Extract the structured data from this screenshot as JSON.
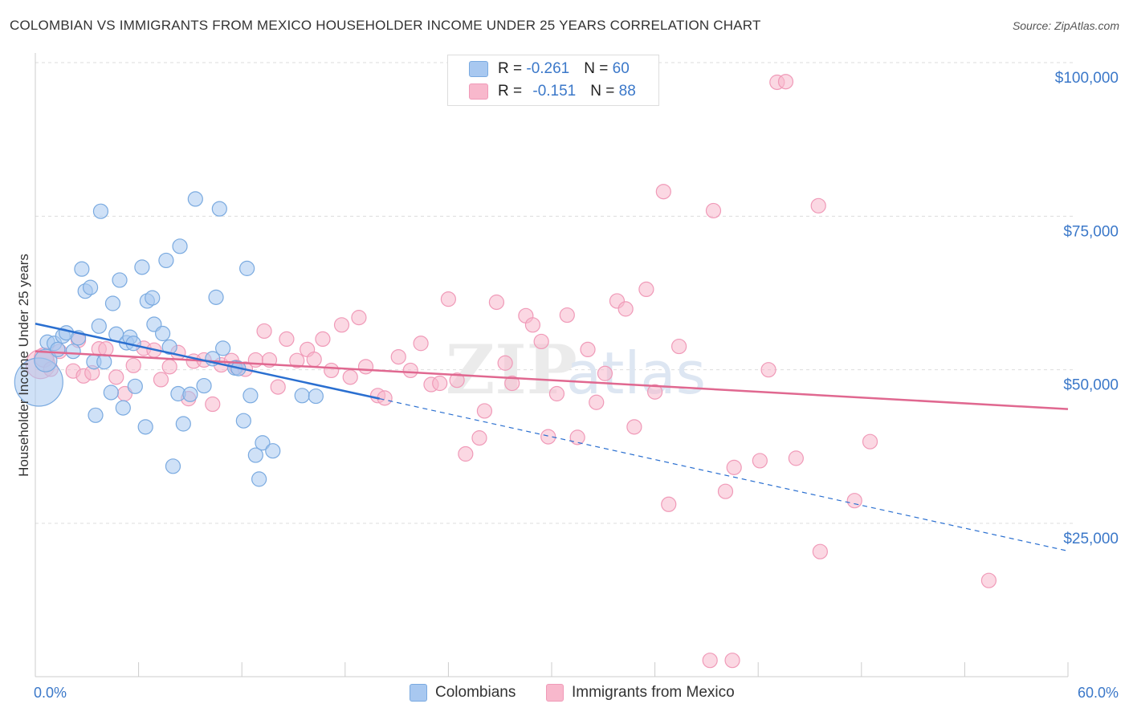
{
  "title": "COLOMBIAN VS IMMIGRANTS FROM MEXICO HOUSEHOLDER INCOME UNDER 25 YEARS CORRELATION CHART",
  "source": "Source: ZipAtlas.com",
  "watermark": {
    "zip": "ZIP",
    "atlas": "atlas"
  },
  "legend_stats": [
    {
      "r_label": "R = ",
      "r": "-0.261",
      "n_label": "N = ",
      "n": "60",
      "color": "#a8c8f0"
    },
    {
      "r_label": "R = ",
      "r": "-0.151",
      "n_label": "N = ",
      "n": "88",
      "color": "#f8b8cc"
    }
  ],
  "chart_data": {
    "type": "scatter",
    "title": "COLOMBIAN VS IMMIGRANTS FROM MEXICO HOUSEHOLDER INCOME UNDER 25 YEARS CORRELATION CHART",
    "xlabel": "",
    "ylabel": "Householder Income Under 25 years",
    "xlim": [
      0,
      60
    ],
    "ylim": [
      0,
      103000
    ],
    "x_tick_labels": [
      "0.0%",
      "60.0%"
    ],
    "y_ticks": [
      25000,
      50000,
      75000,
      100000
    ],
    "y_tick_labels": [
      "$25,000",
      "$50,000",
      "$75,000",
      "$100,000"
    ],
    "grid": true,
    "legend_position": "bottom",
    "series": [
      {
        "name": "Colombians",
        "color": "#7aaae0",
        "fill": "#a8c8f0",
        "trend": {
          "x": [
            0,
            20
          ],
          "y": [
            57500,
            45300
          ],
          "dashed_extension_to_x": 60,
          "dashed_end_y": 20500,
          "color": "#2a6fd0"
        },
        "points": [
          [
            0.2,
            48000,
            30
          ],
          [
            0.6,
            51500,
            14
          ],
          [
            0.7,
            54500,
            9
          ],
          [
            1.1,
            54300,
            9
          ],
          [
            1.3,
            53300,
            9
          ],
          [
            1.6,
            55500,
            9
          ],
          [
            1.8,
            56000,
            9
          ],
          [
            2.2,
            53000,
            9
          ],
          [
            2.5,
            55200,
            9
          ],
          [
            2.7,
            66400,
            9
          ],
          [
            2.9,
            62800,
            9
          ],
          [
            3.2,
            63400,
            9
          ],
          [
            3.4,
            51300,
            9
          ],
          [
            3.5,
            42600,
            9
          ],
          [
            3.7,
            57100,
            9
          ],
          [
            3.8,
            75800,
            9
          ],
          [
            4.0,
            51300,
            9
          ],
          [
            4.4,
            46300,
            9
          ],
          [
            4.5,
            60800,
            9
          ],
          [
            4.7,
            55800,
            9
          ],
          [
            4.9,
            64600,
            9
          ],
          [
            5.1,
            43800,
            9
          ],
          [
            5.3,
            54400,
            9
          ],
          [
            5.5,
            55300,
            9
          ],
          [
            5.7,
            54300,
            9
          ],
          [
            5.8,
            47300,
            9
          ],
          [
            6.2,
            66700,
            9
          ],
          [
            6.4,
            40700,
            9
          ],
          [
            6.5,
            61200,
            9
          ],
          [
            6.8,
            61700,
            9
          ],
          [
            6.9,
            57400,
            9
          ],
          [
            7.4,
            55900,
            9
          ],
          [
            7.6,
            67800,
            9
          ],
          [
            7.8,
            53700,
            9
          ],
          [
            8.0,
            34300,
            9
          ],
          [
            8.3,
            46100,
            9
          ],
          [
            8.4,
            70100,
            9
          ],
          [
            8.6,
            41200,
            9
          ],
          [
            9.0,
            46000,
            9
          ],
          [
            9.3,
            77800,
            9
          ],
          [
            9.8,
            47400,
            9
          ],
          [
            10.5,
            61800,
            9
          ],
          [
            10.7,
            76200,
            9
          ],
          [
            10.9,
            53500,
            9
          ],
          [
            10.3,
            51800,
            9
          ],
          [
            11.6,
            50300,
            9
          ],
          [
            11.8,
            50200,
            9
          ],
          [
            12.1,
            41700,
            9
          ],
          [
            12.3,
            66500,
            9
          ],
          [
            12.5,
            45800,
            9
          ],
          [
            12.8,
            36100,
            9
          ],
          [
            13.0,
            32200,
            9
          ],
          [
            13.2,
            38100,
            9
          ],
          [
            13.8,
            36800,
            9
          ],
          [
            15.5,
            45800,
            9
          ],
          [
            16.3,
            45700,
            9
          ]
        ]
      },
      {
        "name": "Immigrants from Mexico",
        "color": "#f09ab8",
        "fill": "#f8b8cc",
        "trend": {
          "x": [
            0,
            60
          ],
          "y": [
            53000,
            43600
          ],
          "color": "#e06890"
        },
        "points": [
          [
            0.3,
            50900,
            18
          ],
          [
            0.5,
            52000,
            12
          ],
          [
            0.9,
            50100,
            9
          ],
          [
            1.4,
            53000,
            9
          ],
          [
            2.2,
            49800,
            9
          ],
          [
            2.5,
            54800,
            9
          ],
          [
            2.8,
            49000,
            9
          ],
          [
            3.3,
            49500,
            9
          ],
          [
            3.7,
            53400,
            9
          ],
          [
            4.1,
            53400,
            9
          ],
          [
            4.7,
            48800,
            9
          ],
          [
            5.2,
            46100,
            9
          ],
          [
            5.7,
            50700,
            9
          ],
          [
            6.3,
            53500,
            9
          ],
          [
            6.9,
            53200,
            9
          ],
          [
            7.3,
            48400,
            9
          ],
          [
            7.8,
            50500,
            9
          ],
          [
            8.3,
            52800,
            9
          ],
          [
            8.9,
            45300,
            9
          ],
          [
            9.2,
            51400,
            9
          ],
          [
            9.8,
            51600,
            9
          ],
          [
            10.3,
            44400,
            9
          ],
          [
            10.8,
            50800,
            9
          ],
          [
            11.4,
            51500,
            9
          ],
          [
            11.7,
            50400,
            9
          ],
          [
            12.2,
            50100,
            9
          ],
          [
            12.8,
            51600,
            9
          ],
          [
            13.3,
            56300,
            9
          ],
          [
            13.6,
            51600,
            9
          ],
          [
            14.1,
            47200,
            9
          ],
          [
            14.6,
            55000,
            9
          ],
          [
            15.2,
            51500,
            9
          ],
          [
            15.8,
            53300,
            9
          ],
          [
            16.2,
            51700,
            9
          ],
          [
            16.7,
            55000,
            9
          ],
          [
            17.2,
            49900,
            9
          ],
          [
            17.8,
            57300,
            9
          ],
          [
            18.3,
            48800,
            9
          ],
          [
            18.8,
            58500,
            9
          ],
          [
            19.2,
            50500,
            9
          ],
          [
            19.9,
            45800,
            9
          ],
          [
            20.3,
            45400,
            9
          ],
          [
            21.1,
            52100,
            9
          ],
          [
            21.8,
            49900,
            9
          ],
          [
            22.4,
            54300,
            9
          ],
          [
            23.0,
            47600,
            9
          ],
          [
            23.5,
            47800,
            9
          ],
          [
            24.0,
            61500,
            9
          ],
          [
            24.5,
            48300,
            9
          ],
          [
            25.0,
            36300,
            9
          ],
          [
            25.8,
            38900,
            9
          ],
          [
            26.1,
            43300,
            9
          ],
          [
            26.8,
            61000,
            9
          ],
          [
            27.3,
            51100,
            9
          ],
          [
            27.7,
            47800,
            9
          ],
          [
            28.5,
            58800,
            9
          ],
          [
            28.9,
            57300,
            9
          ],
          [
            29.4,
            54600,
            9
          ],
          [
            29.8,
            39100,
            9
          ],
          [
            30.3,
            46100,
            9
          ],
          [
            30.9,
            58900,
            9
          ],
          [
            31.5,
            39000,
            9
          ],
          [
            32.1,
            53300,
            9
          ],
          [
            32.6,
            44700,
            9
          ],
          [
            33.1,
            49400,
            9
          ],
          [
            33.8,
            61200,
            9
          ],
          [
            34.3,
            59900,
            9
          ],
          [
            34.8,
            40700,
            9
          ],
          [
            35.5,
            63100,
            9
          ],
          [
            36.0,
            46400,
            9
          ],
          [
            36.5,
            79000,
            9
          ],
          [
            36.8,
            28100,
            9
          ],
          [
            37.4,
            53800,
            9
          ],
          [
            39.4,
            75900,
            9
          ],
          [
            40.1,
            30200,
            9
          ],
          [
            40.6,
            34100,
            9
          ],
          [
            42.1,
            35200,
            9
          ],
          [
            42.6,
            50000,
            9
          ],
          [
            43.1,
            96800,
            9
          ],
          [
            43.6,
            96900,
            9
          ],
          [
            44.2,
            35600,
            9
          ],
          [
            45.5,
            76700,
            9
          ],
          [
            45.6,
            20400,
            9
          ],
          [
            47.6,
            28700,
            9
          ],
          [
            48.5,
            38300,
            9
          ],
          [
            55.4,
            15700,
            9
          ],
          [
            39.2,
            2700,
            9
          ],
          [
            40.5,
            2700,
            9
          ]
        ]
      }
    ]
  },
  "legend_bottom": [
    {
      "label": "Colombians",
      "color": "#a8c8f0"
    },
    {
      "label": "Immigrants from Mexico",
      "color": "#f8b8cc"
    }
  ]
}
